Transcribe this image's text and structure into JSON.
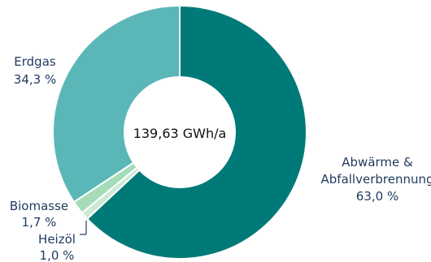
{
  "chart_data": {
    "type": "pie",
    "variant": "donut",
    "center_label": "139,63 GWh/a",
    "slices": [
      {
        "name": "Abwärme &",
        "name_line2": "Abfallverbrennung",
        "label": "63,0 %",
        "value": 63.0,
        "color": "#007a78"
      },
      {
        "name": "Heizöl",
        "label": "1,0 %",
        "value": 1.0,
        "color": "#cde9d3"
      },
      {
        "name": "Biomasse",
        "label": "1,7 %",
        "value": 1.7,
        "color": "#a6dbb8"
      },
      {
        "name": "Erdgas",
        "label": "34,3 %",
        "value": 34.3,
        "color": "#5bb7b7"
      }
    ]
  }
}
